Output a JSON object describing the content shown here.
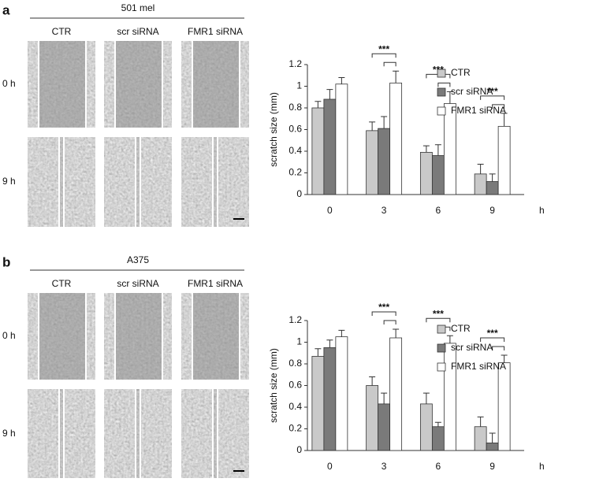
{
  "panels": [
    {
      "label": "a",
      "cell_line": "501 mel",
      "columns": [
        "CTR",
        "scr siRNA",
        "FMR1 siRNA"
      ],
      "rows": [
        "0 h",
        "9 h"
      ]
    },
    {
      "label": "b",
      "cell_line": "A375",
      "columns": [
        "CTR",
        "scr siRNA",
        "FMR1 siRNA"
      ],
      "rows": [
        "0 h",
        "9 h"
      ]
    }
  ],
  "chart_data": [
    {
      "type": "bar",
      "y_label": "scratch size (mm)",
      "x_unit": "h",
      "categories": [
        "0",
        "3",
        "6",
        "9"
      ],
      "ylim": [
        0,
        1.2
      ],
      "yticks": [
        0,
        0.2,
        0.4,
        0.6,
        0.8,
        1,
        1.2
      ],
      "series": [
        {
          "name": "CTR",
          "color": "#c9c9c9",
          "values": [
            0.8,
            0.59,
            0.39,
            0.19
          ],
          "errors": [
            0.06,
            0.08,
            0.06,
            0.09
          ]
        },
        {
          "name": "scr siRNA",
          "color": "#7a7a7a",
          "values": [
            0.88,
            0.61,
            0.36,
            0.12
          ],
          "errors": [
            0.09,
            0.11,
            0.1,
            0.07
          ]
        },
        {
          "name": "FMR1 siRNA",
          "color": "#ffffff",
          "values": [
            1.02,
            1.03,
            0.84,
            0.63
          ],
          "errors": [
            0.06,
            0.11,
            0.11,
            0.12
          ]
        }
      ],
      "annotations": [
        "***",
        "***",
        "***"
      ]
    },
    {
      "type": "bar",
      "y_label": "scratch size (mm)",
      "x_unit": "h",
      "categories": [
        "0",
        "3",
        "6",
        "9"
      ],
      "ylim": [
        0,
        1.2
      ],
      "yticks": [
        0,
        0.2,
        0.4,
        0.6,
        0.8,
        1,
        1.2
      ],
      "series": [
        {
          "name": "CTR",
          "color": "#c9c9c9",
          "values": [
            0.87,
            0.6,
            0.43,
            0.22
          ],
          "errors": [
            0.07,
            0.08,
            0.1,
            0.09
          ]
        },
        {
          "name": "scr siRNA",
          "color": "#7a7a7a",
          "values": [
            0.95,
            0.43,
            0.22,
            0.07
          ],
          "errors": [
            0.07,
            0.1,
            0.04,
            0.09
          ]
        },
        {
          "name": "FMR1 siRNA",
          "color": "#ffffff",
          "values": [
            1.05,
            1.04,
            0.99,
            0.81
          ],
          "errors": [
            0.06,
            0.08,
            0.07,
            0.07
          ]
        }
      ],
      "annotations": [
        "***",
        "***",
        "***"
      ]
    }
  ]
}
